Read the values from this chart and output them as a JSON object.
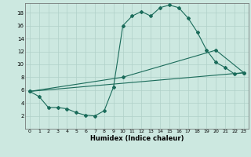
{
  "xlabel": "Humidex (Indice chaleur)",
  "bg_color": "#cce8e0",
  "line_color": "#1a6b5a",
  "grid_color": "#b0d0c8",
  "xlim": [
    -0.5,
    23.5
  ],
  "ylim": [
    0,
    19.5
  ],
  "xticks": [
    0,
    1,
    2,
    3,
    4,
    5,
    6,
    7,
    8,
    9,
    10,
    11,
    12,
    13,
    14,
    15,
    16,
    17,
    18,
    19,
    20,
    21,
    22,
    23
  ],
  "yticks": [
    2,
    4,
    6,
    8,
    10,
    12,
    14,
    16,
    18
  ],
  "line1_x": [
    0,
    1,
    2,
    3,
    4,
    5,
    6,
    7,
    8,
    9,
    10,
    11,
    12,
    13,
    14,
    15,
    16,
    17,
    18,
    19,
    20,
    21,
    22,
    23
  ],
  "line1_y": [
    5.8,
    5.0,
    3.3,
    3.3,
    3.1,
    2.5,
    2.1,
    2.0,
    2.8,
    6.5,
    16.0,
    17.5,
    18.2,
    17.5,
    18.8,
    19.2,
    18.8,
    17.2,
    15.0,
    12.2,
    10.3,
    9.5,
    8.5,
    8.7
  ],
  "line2_x": [
    0,
    10,
    20,
    23
  ],
  "line2_y": [
    5.8,
    8.0,
    12.2,
    8.7
  ],
  "line3_x": [
    0,
    23
  ],
  "line3_y": [
    5.8,
    8.7
  ]
}
